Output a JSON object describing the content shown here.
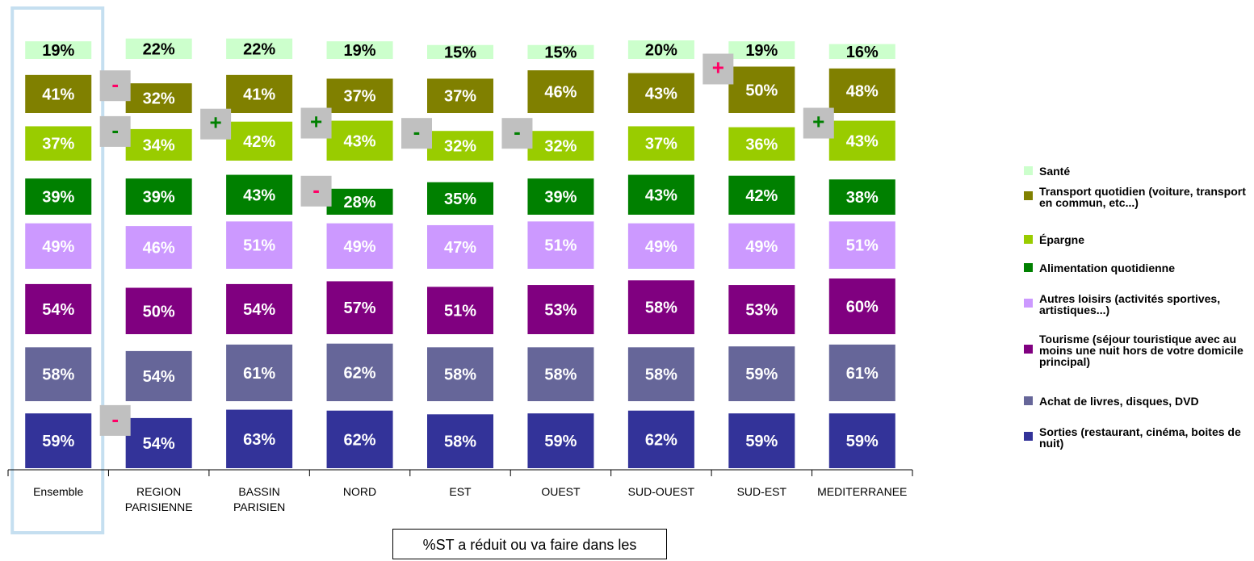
{
  "chart_data": {
    "type": "bar",
    "categories": [
      "Ensemble",
      "REGION PARISIENNE",
      "BASSIN PARISIEN",
      "NORD",
      "EST",
      "OUEST",
      "SUD-OUEST",
      "SUD-EST",
      "MEDITERRANEE"
    ],
    "series": [
      {
        "name": "Santé",
        "color": "#ccffcc",
        "values": [
          19,
          22,
          22,
          19,
          15,
          15,
          20,
          19,
          16
        ],
        "value_labels": [
          "19%",
          "22%",
          "22%",
          "19%",
          "15%",
          "15%",
          "20%",
          "19%",
          "16%"
        ]
      },
      {
        "name": "Transport quotidien (voiture, transport en commun, etc...)",
        "color": "#808000",
        "values": [
          41,
          32,
          41,
          37,
          37,
          46,
          43,
          50,
          48
        ],
        "value_labels": [
          "41%",
          "32%",
          "41%",
          "37%",
          "37%",
          "46%",
          "43%",
          "50%",
          "48%"
        ]
      },
      {
        "name": "Épargne",
        "color": "#99cc00",
        "values": [
          37,
          34,
          42,
          43,
          32,
          32,
          37,
          36,
          43
        ],
        "value_labels": [
          "37%",
          "34%",
          "42%",
          "43%",
          "32%",
          "32%",
          "37%",
          "36%",
          "43%"
        ]
      },
      {
        "name": "Alimentation quotidienne",
        "color": "#008000",
        "values": [
          39,
          39,
          43,
          28,
          35,
          39,
          43,
          42,
          38
        ],
        "value_labels": [
          "39%",
          "39%",
          "43%",
          "28%",
          "35%",
          "39%",
          "43%",
          "42%",
          "38%"
        ]
      },
      {
        "name": "Autres loisirs (activités sportives, artistiques...)",
        "color": "#cc99ff",
        "values": [
          49,
          46,
          51,
          49,
          47,
          51,
          49,
          49,
          51
        ],
        "value_labels": [
          "49%",
          "46%",
          "51%",
          "49%",
          "47%",
          "51%",
          "49%",
          "49%",
          "51%"
        ]
      },
      {
        "name": "Tourisme (séjour touristique avec au moins une nuit hors de votre domicile principal)",
        "color": "#800080",
        "values": [
          54,
          50,
          54,
          57,
          51,
          53,
          58,
          53,
          60
        ],
        "value_labels": [
          "54%",
          "50%",
          "54%",
          "57%",
          "51%",
          "53%",
          "58%",
          "53%",
          "60%"
        ]
      },
      {
        "name": "Achat de livres, disques, DVD",
        "color": "#666699",
        "values": [
          58,
          54,
          61,
          62,
          58,
          58,
          58,
          59,
          61
        ],
        "value_labels": [
          "58%",
          "54%",
          "61%",
          "62%",
          "58%",
          "58%",
          "58%",
          "59%",
          "61%"
        ]
      },
      {
        "name": "Sorties (restaurant, cinéma, boites de nuit)",
        "color": "#333399",
        "values": [
          59,
          54,
          63,
          62,
          58,
          59,
          62,
          59,
          59
        ],
        "value_labels": [
          "59%",
          "54%",
          "63%",
          "62%",
          "58%",
          "59%",
          "62%",
          "59%",
          "59%"
        ]
      }
    ],
    "annotations": [
      {
        "category": 1,
        "series": 1,
        "text": "-",
        "color": "#ff0066"
      },
      {
        "category": 1,
        "series": 2,
        "text": "-",
        "color": "#008000"
      },
      {
        "category": 1,
        "series": 7,
        "text": "-",
        "color": "#ff0066"
      },
      {
        "category": 2,
        "series": 2,
        "text": "+",
        "color": "#008000"
      },
      {
        "category": 3,
        "series": 2,
        "text": "+",
        "color": "#008000"
      },
      {
        "category": 3,
        "series": 3,
        "text": "-",
        "color": "#ff0066"
      },
      {
        "category": 4,
        "series": 2,
        "text": "-",
        "color": "#008000"
      },
      {
        "category": 5,
        "series": 2,
        "text": "-",
        "color": "#008000"
      },
      {
        "category": 7,
        "series": 1,
        "text": "+",
        "color": "#ff0066"
      },
      {
        "category": 8,
        "series": 2,
        "text": "+",
        "color": "#008000"
      }
    ],
    "note": "%ST a réduit ou va faire dans les prochaines semaines",
    "highlight_category": 0,
    "legend": "right"
  }
}
